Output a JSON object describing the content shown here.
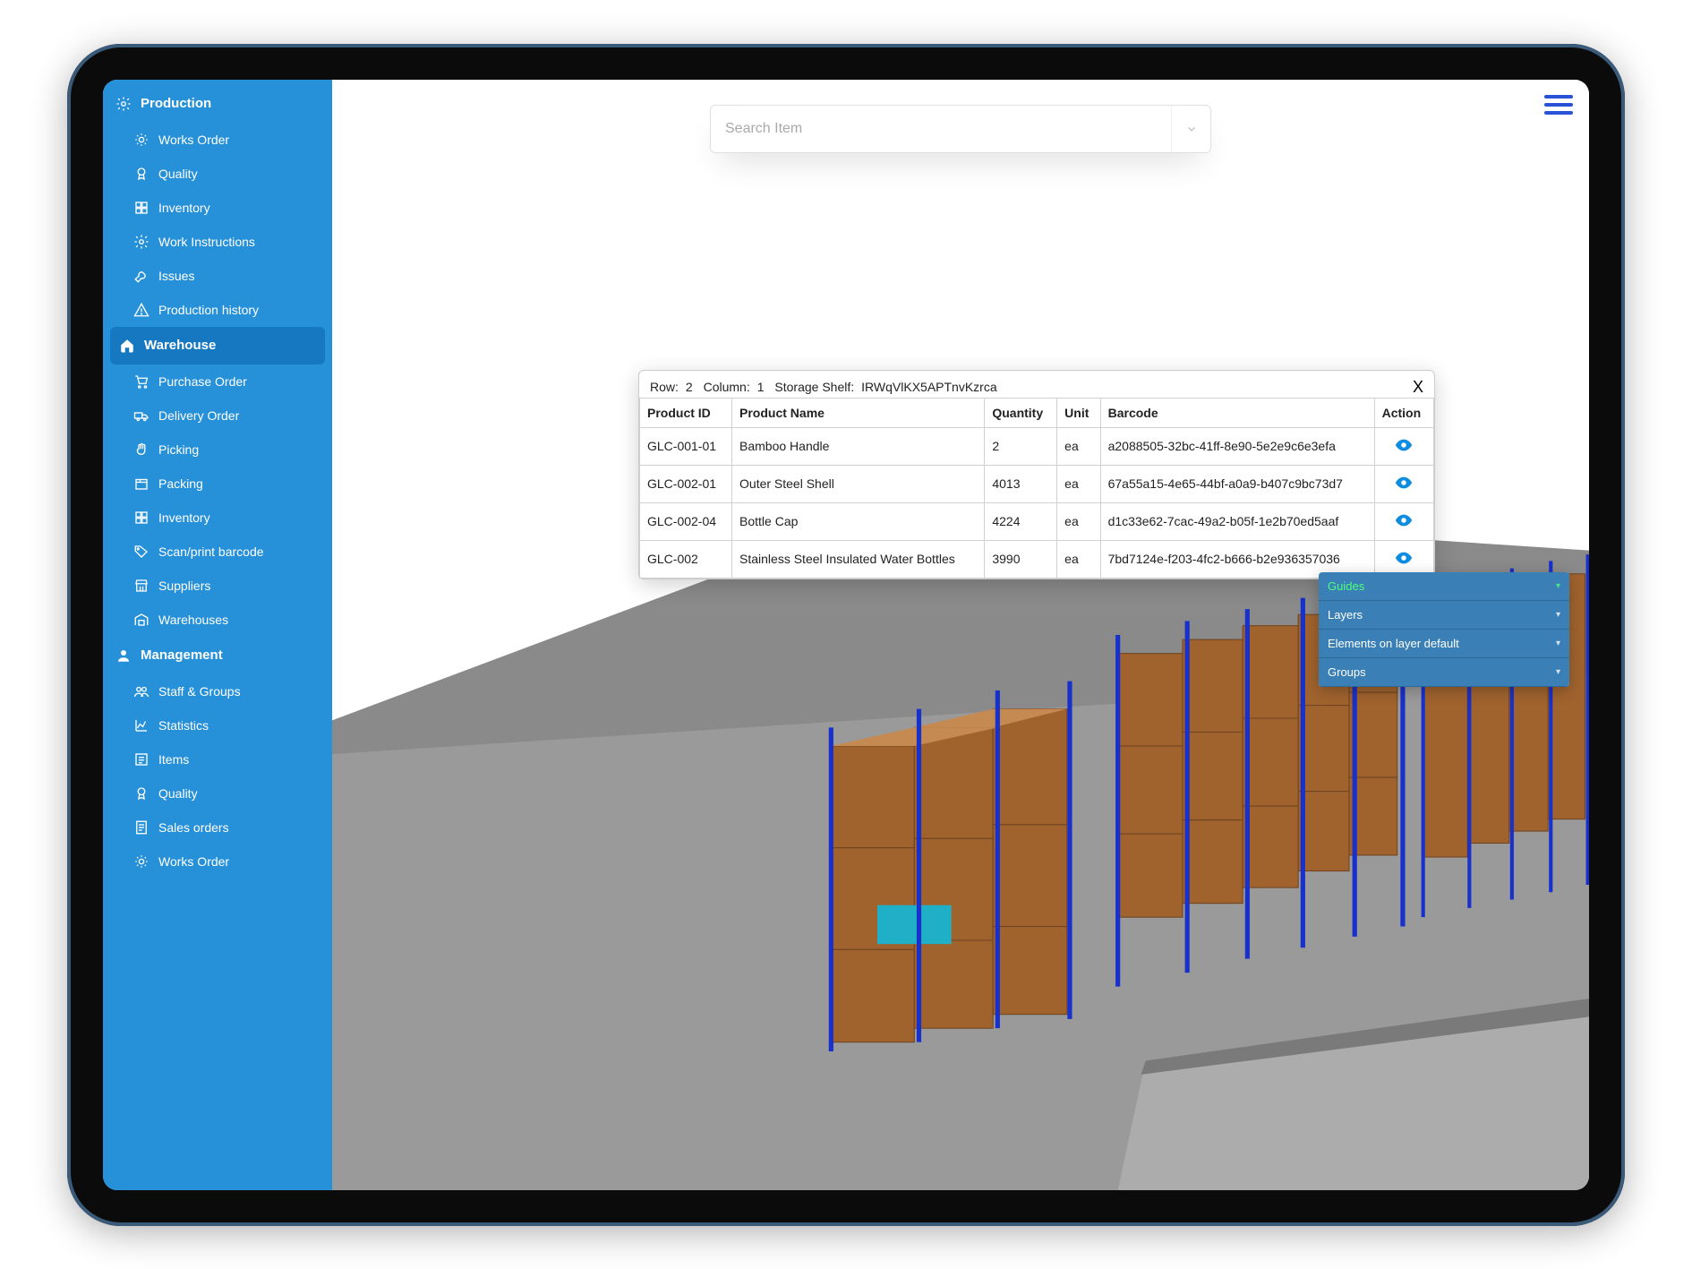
{
  "search": {
    "placeholder": "Search Item"
  },
  "sidebar": {
    "sections": [
      {
        "label": "Production",
        "icon": "gear",
        "items": [
          {
            "label": "Works Order",
            "icon": "gear-badge"
          },
          {
            "label": "Quality",
            "icon": "badge"
          },
          {
            "label": "Inventory",
            "icon": "boxes"
          },
          {
            "label": "Work Instructions",
            "icon": "gear"
          },
          {
            "label": "Issues",
            "icon": "wrench"
          },
          {
            "label": "Production history",
            "icon": "warning"
          }
        ]
      },
      {
        "label": "Warehouse",
        "icon": "home",
        "active": true,
        "items": [
          {
            "label": "Purchase Order",
            "icon": "cart"
          },
          {
            "label": "Delivery Order",
            "icon": "truck"
          },
          {
            "label": "Picking",
            "icon": "hand"
          },
          {
            "label": "Packing",
            "icon": "box"
          },
          {
            "label": "Inventory",
            "icon": "boxes"
          },
          {
            "label": "Scan/print barcode",
            "icon": "tag"
          },
          {
            "label": "Suppliers",
            "icon": "store"
          },
          {
            "label": "Warehouses",
            "icon": "warehouse"
          }
        ]
      },
      {
        "label": "Management",
        "icon": "person",
        "items": [
          {
            "label": "Staff & Groups",
            "icon": "people"
          },
          {
            "label": "Statistics",
            "icon": "chart"
          },
          {
            "label": "Items",
            "icon": "list"
          },
          {
            "label": "Quality",
            "icon": "badge"
          },
          {
            "label": "Sales orders",
            "icon": "receipt"
          },
          {
            "label": "Works Order",
            "icon": "gear-badge"
          }
        ]
      }
    ]
  },
  "popup": {
    "row_label": "Row:",
    "row_value": "2",
    "col_label": "Column:",
    "col_value": "1",
    "shelf_label": "Storage Shelf:",
    "shelf_value": "IRWqVlKX5APTnvKzrca",
    "columns": [
      "Product ID",
      "Product Name",
      "Quantity",
      "Unit",
      "Barcode",
      "Action"
    ],
    "rows": [
      {
        "id": "GLC-001-01",
        "name": "Bamboo Handle",
        "qty": "2",
        "unit": "ea",
        "barcode": "a2088505-32bc-41ff-8e90-5e2e9c6e3efa"
      },
      {
        "id": "GLC-002-01",
        "name": "Outer Steel Shell",
        "qty": "4013",
        "unit": "ea",
        "barcode": "67a55a15-4e65-44bf-a0a9-b407c9bc73d7"
      },
      {
        "id": "GLC-002-04",
        "name": "Bottle Cap",
        "qty": "4224",
        "unit": "ea",
        "barcode": "d1c33e62-7cac-49a2-b05f-1e2b70ed5aaf"
      },
      {
        "id": "GLC-002",
        "name": "Stainless Steel Insulated Water Bottles",
        "qty": "3990",
        "unit": "ea",
        "barcode": "7bd7124e-f203-4fc2-b666-b2e936357036"
      }
    ]
  },
  "layer_panel": {
    "items": [
      "Guides",
      "Layers",
      "Elements on layer default",
      "Groups"
    ]
  },
  "colors": {
    "sidebar_bg": "#2690d8",
    "sidebar_active": "#1678c0",
    "accent": "#0d8de0",
    "panel_bg": "#3a7fb5",
    "panel_active_text": "#4cff7a",
    "shelf_box": "#a0632e",
    "shelf_side": "#c58a52",
    "floor": "#9a9a9a",
    "wall": "#8a8a8a",
    "post": "#1830cc",
    "highlight_bin": "#1fb0c8"
  }
}
